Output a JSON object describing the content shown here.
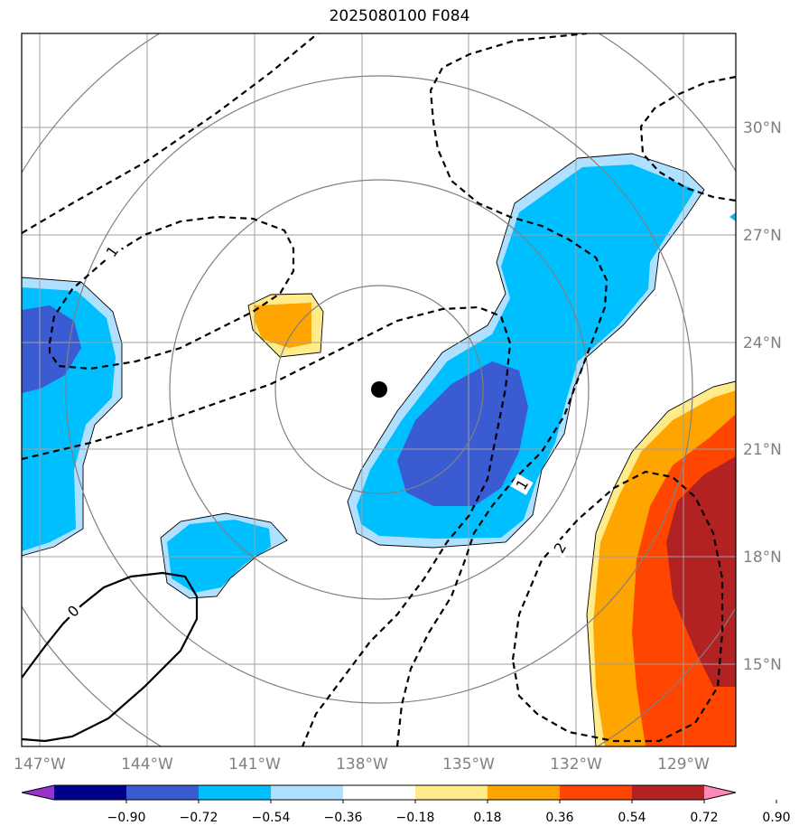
{
  "title": "2025080100 F084",
  "map": {
    "lon_range": [
      -147.8,
      -127.9
    ],
    "lat_range": [
      12.8,
      32.8
    ],
    "lat_ticks": [
      "30°N",
      "27°N",
      "24°N",
      "21°N",
      "18°N",
      "15°N"
    ],
    "lon_ticks": [
      "147°W",
      "144°W",
      "141°W",
      "138°W",
      "135°W",
      "132°W",
      "129°W"
    ],
    "center_marker": {
      "lon": -137.5,
      "lat": 22.6
    },
    "contour_labels": [
      "1",
      "1",
      "2",
      "0"
    ]
  },
  "colorbar": {
    "ticks": [
      "−0.90",
      "−0.72",
      "−0.54",
      "−0.36",
      "−0.18",
      "0.18",
      "0.36",
      "0.54",
      "0.72",
      "0.90"
    ],
    "colors": [
      "#9932cc",
      "#00008b",
      "#3a5bd1",
      "#00bfff",
      "#b0e0ff",
      "#ffffff",
      "#ffeb8a",
      "#ffa500",
      "#ff4500",
      "#b22222",
      "#ff88b8"
    ]
  }
}
